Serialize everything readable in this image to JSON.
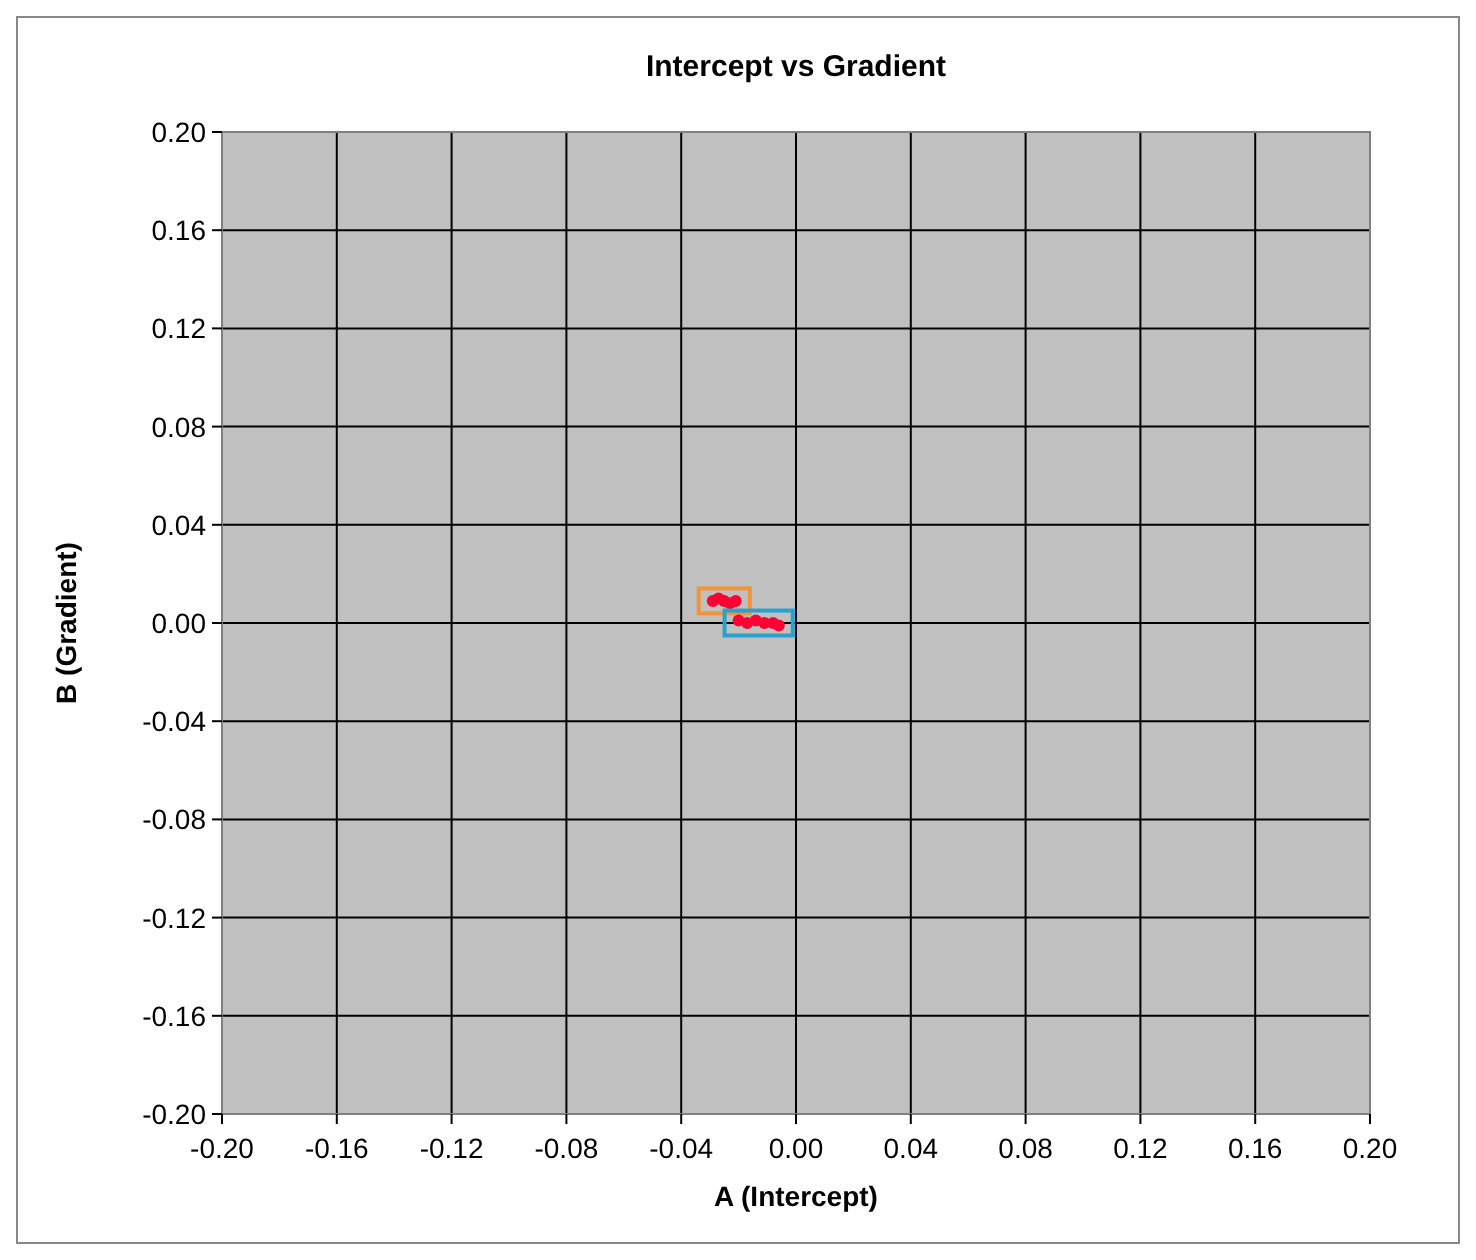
{
  "chart_data": {
    "type": "scatter",
    "title": "Intercept vs Gradient",
    "xlabel": "A (Intercept)",
    "ylabel": "B (Gradient)",
    "xlim": [
      -0.2,
      0.2
    ],
    "ylim": [
      -0.2,
      0.2
    ],
    "xticks": [
      {
        "value": -0.2,
        "label": "-0.20"
      },
      {
        "value": -0.16,
        "label": "-0.16"
      },
      {
        "value": -0.12,
        "label": "-0.12"
      },
      {
        "value": -0.08,
        "label": "-0.08"
      },
      {
        "value": -0.04,
        "label": "-0.04"
      },
      {
        "value": 0,
        "label": "0.00"
      },
      {
        "value": 0.04,
        "label": "0.04"
      },
      {
        "value": 0.08,
        "label": "0.08"
      },
      {
        "value": 0.12,
        "label": "0.12"
      },
      {
        "value": 0.16,
        "label": "0.16"
      },
      {
        "value": 0.2,
        "label": "0.20"
      }
    ],
    "yticks": [
      {
        "value": -0.2,
        "label": "-0.20"
      },
      {
        "value": -0.16,
        "label": "-0.16"
      },
      {
        "value": -0.12,
        "label": "-0.12"
      },
      {
        "value": -0.08,
        "label": "-0.08"
      },
      {
        "value": -0.04,
        "label": "-0.04"
      },
      {
        "value": 0,
        "label": "0.00"
      },
      {
        "value": 0.04,
        "label": "0.04"
      },
      {
        "value": 0.08,
        "label": "0.08"
      },
      {
        "value": 0.12,
        "label": "0.12"
      },
      {
        "value": 0.16,
        "label": "0.16"
      },
      {
        "value": 0.2,
        "label": "0.20"
      }
    ],
    "grid": true,
    "marker": "circle",
    "series": [
      {
        "color": "#ff0033",
        "x": [
          -0.029,
          -0.027,
          -0.025,
          -0.023,
          -0.021
        ],
        "values": [
          0.009,
          0.01,
          0.009,
          0.008,
          0.009
        ]
      },
      {
        "color": "#ff0033",
        "x": [
          -0.02,
          -0.017,
          -0.014,
          -0.011,
          -0.008,
          -0.006
        ],
        "values": [
          0.001,
          0,
          0.001,
          0,
          0,
          -0.001
        ]
      }
    ]
  }
}
